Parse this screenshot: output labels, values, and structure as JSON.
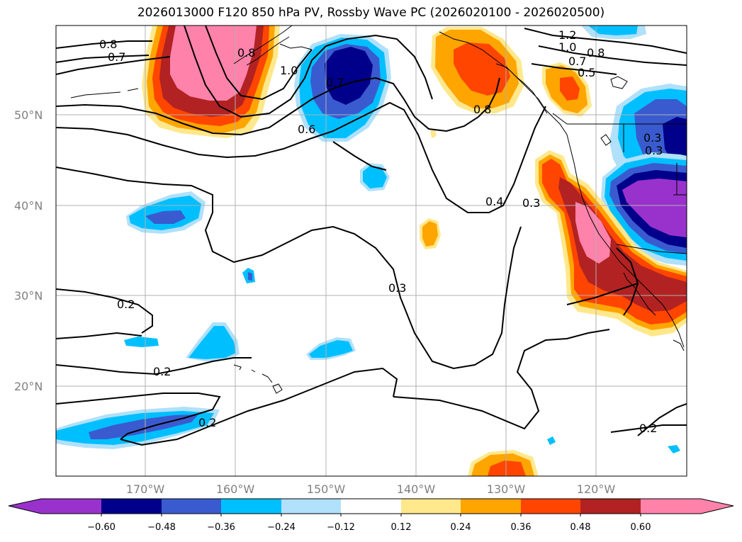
{
  "title": "2026013000 F120 850 hPa PV, Rossby Wave PC (2026020100 - 2026020500)",
  "lat_labels": [
    "50°N",
    "40°N",
    "30°N",
    "20°N"
  ],
  "lon_labels": [
    "170°W",
    "160°W",
    "150°W",
    "140°W",
    "130°W",
    "120°W"
  ],
  "colorbar": {
    "ticks": [
      "−0.60",
      "−0.48",
      "−0.36",
      "−0.24",
      "−0.12",
      "0.12",
      "0.24",
      "0.36",
      "0.48",
      "0.60"
    ],
    "colors": [
      "#9932cc",
      "#00008b",
      "#3a5bcf",
      "#00bfff",
      "#b0e0fa",
      "#ffffff",
      "#ffe88c",
      "#ffa500",
      "#ff4500",
      "#b22222",
      "#ff82ab"
    ]
  },
  "contour_labels": [
    "0.8",
    "0.7",
    "0.8",
    "1.0",
    "0.7",
    "0.6",
    "0.8",
    "1.2",
    "1.0",
    "0.8",
    "0.7",
    "0.5",
    "0.4",
    "0.3",
    "0.3",
    "0.2",
    "0.2",
    "0.2",
    "0.2",
    "0.3",
    "0.3"
  ],
  "shading_colors": {
    "lightblue": "#b0e0fa",
    "cyan": "#00bfff",
    "blue": "#3a5bcf",
    "navy": "#00008b",
    "purple": "#9932cc",
    "yellow": "#ffe88c",
    "orange": "#ffa500",
    "redorange": "#ff4500",
    "darkred": "#b22222",
    "pink": "#ff82ab"
  }
}
